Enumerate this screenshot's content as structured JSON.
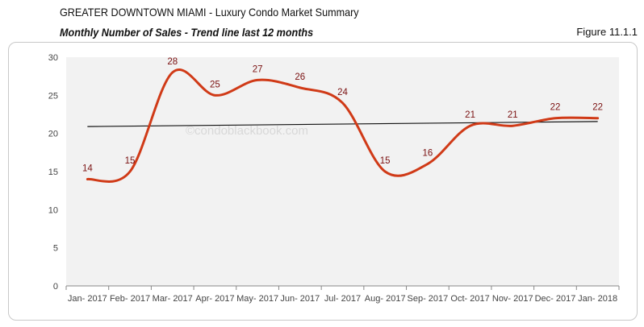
{
  "header": {
    "title_main": "GREATER DOWNTOWN MIAMI",
    "title_rest": " - Luxury Condo Market Summary",
    "subtitle": "Monthly Number of Sales - Trend line last 12 months",
    "figure": "Figure 11.1.1"
  },
  "watermark": "©condoblackbook.com",
  "chart_data": {
    "type": "line",
    "categories": [
      "Jan- 2017",
      "Feb- 2017",
      "Mar- 2017",
      "Apr- 2017",
      "May- 2017",
      "Jun- 2017",
      "Jul- 2017",
      "Aug- 2017",
      "Sep- 2017",
      "Oct- 2017",
      "Nov- 2017",
      "Dec- 2017",
      "Jan- 2018"
    ],
    "series": [
      {
        "values": [
          14,
          15,
          28,
          25,
          27,
          26,
          24,
          15,
          16,
          21,
          21,
          22,
          22
        ],
        "color": "#d03a17",
        "smooth": true,
        "data_labels": true
      }
    ],
    "trendline": {
      "type": "linear",
      "color": "#111111"
    },
    "ylim": [
      0,
      30
    ],
    "yticks": [
      0,
      5,
      10,
      15,
      20,
      25,
      30
    ],
    "grid": false,
    "plot_background": "#f2f2f2",
    "legend": "none"
  }
}
